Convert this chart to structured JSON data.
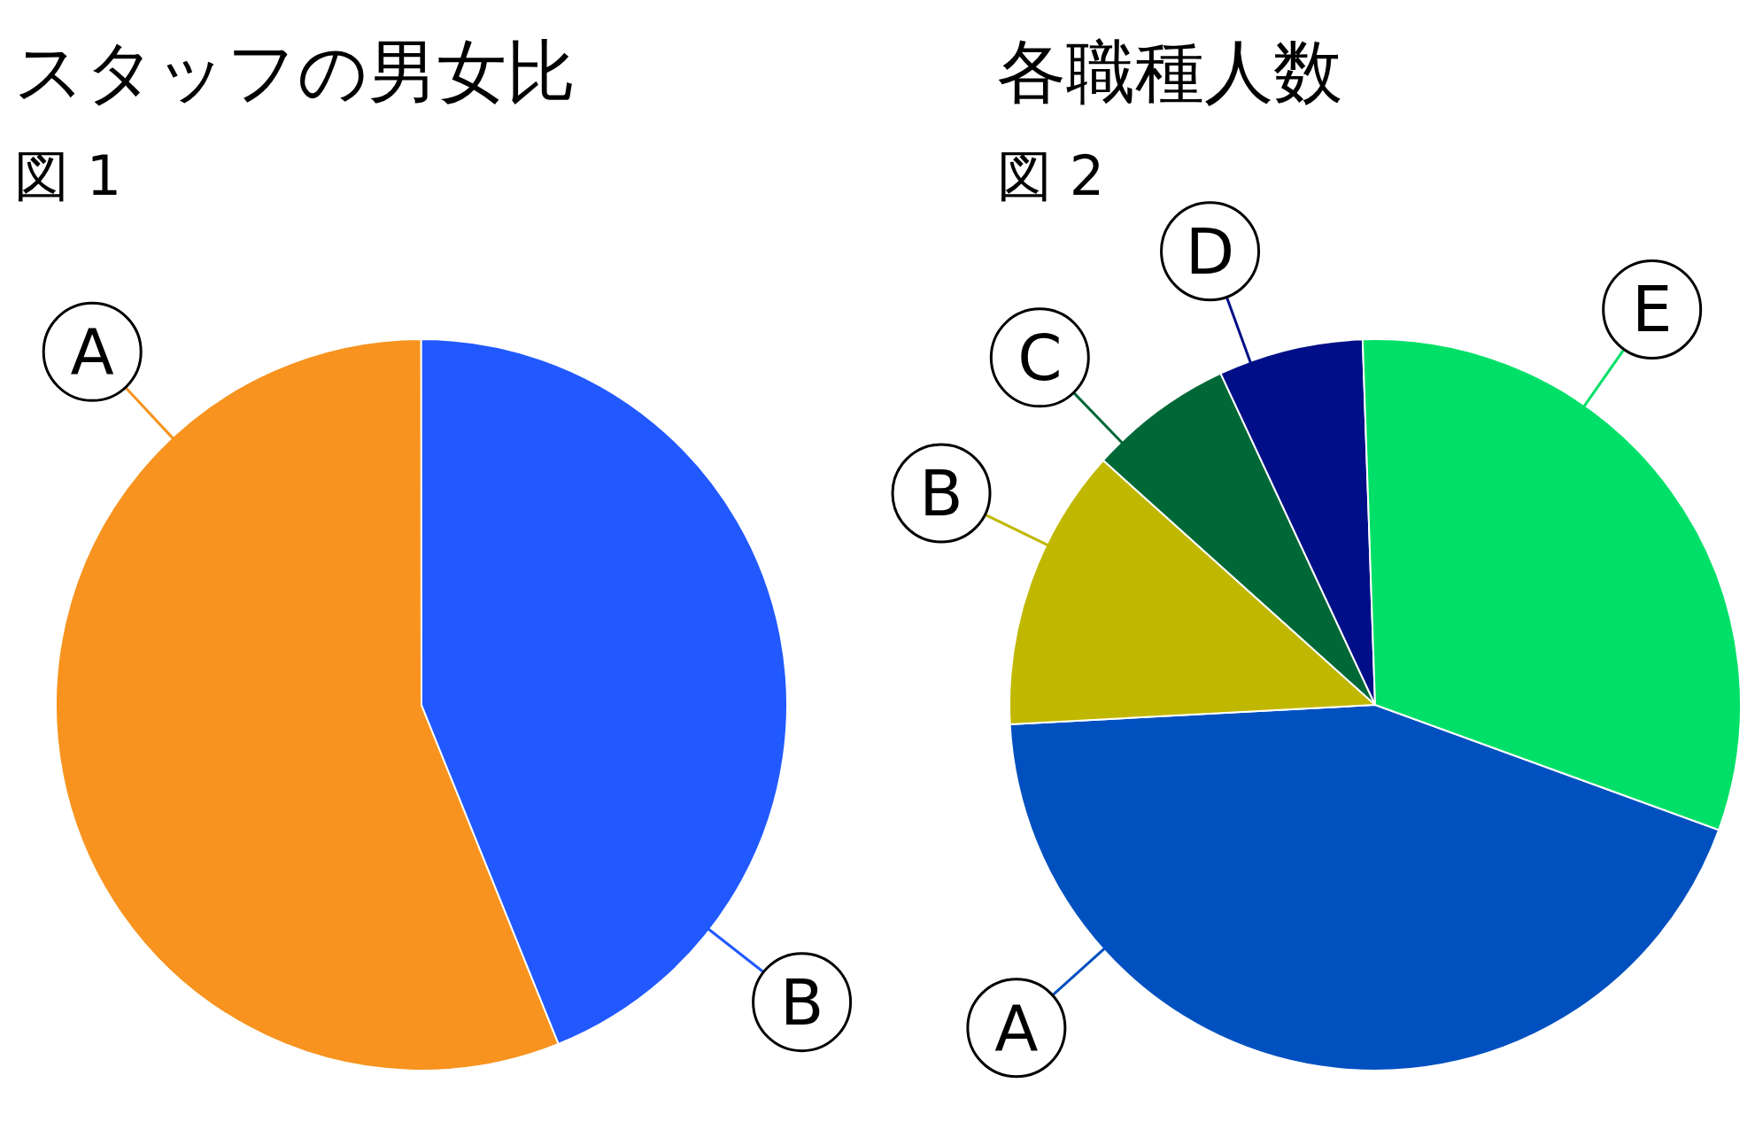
{
  "chart_data": [
    {
      "type": "pie",
      "title": "スタッフの男女比",
      "subtitle": "図 1",
      "categories": [
        "A",
        "B"
      ],
      "values": [
        56.1,
        43.9
      ],
      "colors": [
        "#f7931e",
        "#2159ff"
      ]
    },
    {
      "type": "pie",
      "title": "各職種人数",
      "subtitle": "図 2",
      "categories": [
        "A",
        "B",
        "C",
        "D",
        "E"
      ],
      "values": [
        43.6,
        12.5,
        6.4,
        6.4,
        31.1
      ],
      "colors": [
        "#0050c0",
        "#c0b800",
        "#006837",
        "#000f87",
        "#00e068"
      ]
    }
  ]
}
